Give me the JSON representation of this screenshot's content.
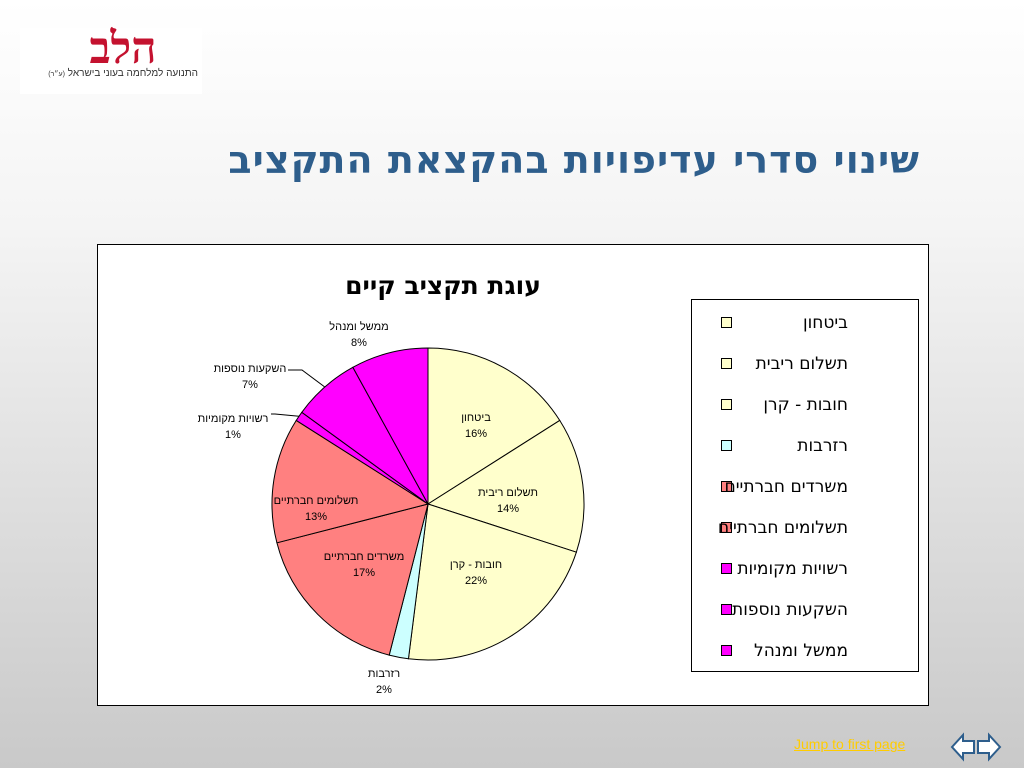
{
  "logo": {
    "mark": "הלב",
    "tagline": "התנועה למלחמה בעוני בישראל",
    "suffix": "(ע״ר)"
  },
  "slide_title": "שינוי סדרי עדיפויות בהקצאת התקציב",
  "chart_data": {
    "type": "pie",
    "title": "עוגת תקציב קיים",
    "slices": [
      {
        "label": "ביטחון",
        "value": 16,
        "value_label": "16%",
        "color": "#ffffcc"
      },
      {
        "label": "תשלום ריבית",
        "value": 14,
        "value_label": "14%",
        "color": "#ffffcc"
      },
      {
        "label": "חובות - קרן",
        "value": 22,
        "value_label": "22%",
        "color": "#ffffcc"
      },
      {
        "label": "רזרבות",
        "value": 2,
        "value_label": "2%",
        "color": "#ccffff"
      },
      {
        "label": "משרדים חברתיים",
        "value": 17,
        "value_label": "17%",
        "color": "#ff8080"
      },
      {
        "label": "תשלומים חברתיים",
        "value": 13,
        "value_label": "13%",
        "color": "#ff8080"
      },
      {
        "label": "רשויות מקומיות",
        "value": 1,
        "value_label": "1%",
        "color": "#ff00ff"
      },
      {
        "label": "השקעות נוספות",
        "value": 7,
        "value_label": "7%",
        "color": "#ff00ff"
      },
      {
        "label": "ממשל ומנהל",
        "value": 8,
        "value_label": "8%",
        "color": "#ff00ff"
      }
    ],
    "direction": "clockwise",
    "start": "top",
    "legend_position": "right"
  },
  "legend": {
    "items": [
      {
        "label": "ביטחון",
        "color": "#ffffcc"
      },
      {
        "label": "תשלום ריבית",
        "color": "#ffffcc"
      },
      {
        "label": "חובות - קרן",
        "color": "#ffffcc"
      },
      {
        "label": "רזרבות",
        "color": "#ccffff"
      },
      {
        "label": "משרדים חברתיים",
        "color": "#ff8080"
      },
      {
        "label": "תשלומים חברתיים",
        "color": "#ff8080"
      },
      {
        "label": "רשויות מקומיות",
        "color": "#ff00ff"
      },
      {
        "label": "השקעות נוספות",
        "color": "#ff00ff"
      },
      {
        "label": "ממשל ומנהל",
        "color": "#ff00ff"
      }
    ]
  },
  "nav": {
    "link_text": "Jump to first page",
    "link_color": "#ffcc00",
    "prev_icon": "arrow-left-icon",
    "next_icon": "arrow-right-icon"
  }
}
